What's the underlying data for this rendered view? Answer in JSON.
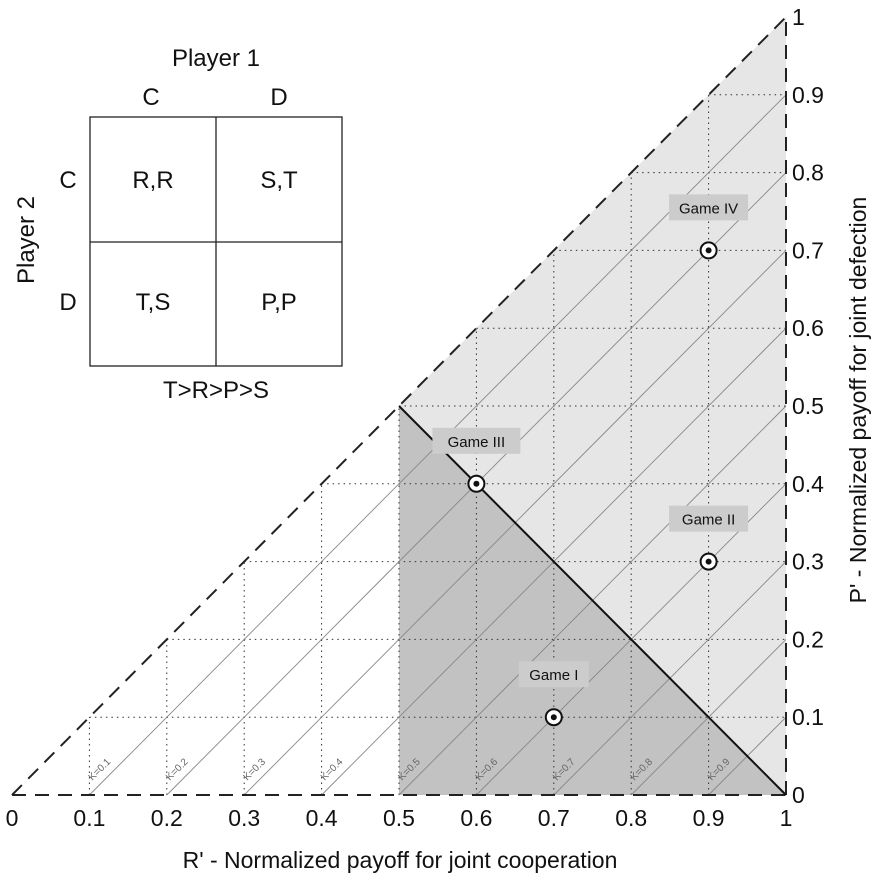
{
  "chart_data": {
    "type": "scatter",
    "xlabel": "R' - Normalized payoff for joint cooperation",
    "ylabel": "P' - Normalized payoff for joint defection",
    "xlim": [
      0,
      1
    ],
    "ylim": [
      0,
      1
    ],
    "x_ticks": [
      "0",
      "0.1",
      "0.2",
      "0.3",
      "0.4",
      "0.5",
      "0.6",
      "0.7",
      "0.8",
      "0.9",
      "1"
    ],
    "y_ticks": [
      "0",
      "0.1",
      "0.2",
      "0.3",
      "0.4",
      "0.5",
      "0.6",
      "0.7",
      "0.8",
      "0.9",
      "1"
    ],
    "grid": "dotted",
    "games": [
      {
        "label": "Game I",
        "x": 0.7,
        "y": 0.1
      },
      {
        "label": "Game II",
        "x": 0.9,
        "y": 0.3
      },
      {
        "label": "Game III",
        "x": 0.6,
        "y": 0.4
      },
      {
        "label": "Game IV",
        "x": 0.9,
        "y": 0.7
      }
    ],
    "k_lines": [
      {
        "label": "K=0.1",
        "k": 0.1
      },
      {
        "label": "K=0.2",
        "k": 0.2
      },
      {
        "label": "K=0.3",
        "k": 0.3
      },
      {
        "label": "K=0.4",
        "k": 0.4
      },
      {
        "label": "K=0.5",
        "k": 0.5
      },
      {
        "label": "K=0.6",
        "k": 0.6
      },
      {
        "label": "K=0.7",
        "k": 0.7
      },
      {
        "label": "K=0.8",
        "k": 0.8
      },
      {
        "label": "K=0.9",
        "k": 0.9
      }
    ],
    "regions": [
      {
        "name": "light",
        "color": "#e6e6e6",
        "polygon": [
          [
            0.5,
            0.5
          ],
          [
            1,
            1
          ],
          [
            1,
            0
          ],
          [
            0.5,
            0
          ]
        ]
      },
      {
        "name": "dark",
        "color": "#c2c2c2",
        "polygon": [
          [
            0.5,
            0
          ],
          [
            0.5,
            0.5
          ],
          [
            1,
            0
          ]
        ]
      }
    ],
    "boundary_line": {
      "from": [
        0.5,
        0.5
      ],
      "to": [
        1,
        0
      ]
    }
  },
  "matrix": {
    "title": "Player 1",
    "side_title": "Player 2",
    "col_labels": [
      "C",
      "D"
    ],
    "row_labels": [
      "C",
      "D"
    ],
    "cells": [
      [
        "R,R",
        "S,T"
      ],
      [
        "T,S",
        "P,P"
      ]
    ],
    "caption": "T>R>P>S"
  },
  "colors": {
    "light_region": "#e6e6e6",
    "dark_region": "#c2c2c2",
    "game_label_bg": "#cccccc",
    "k_line": "#888888"
  }
}
